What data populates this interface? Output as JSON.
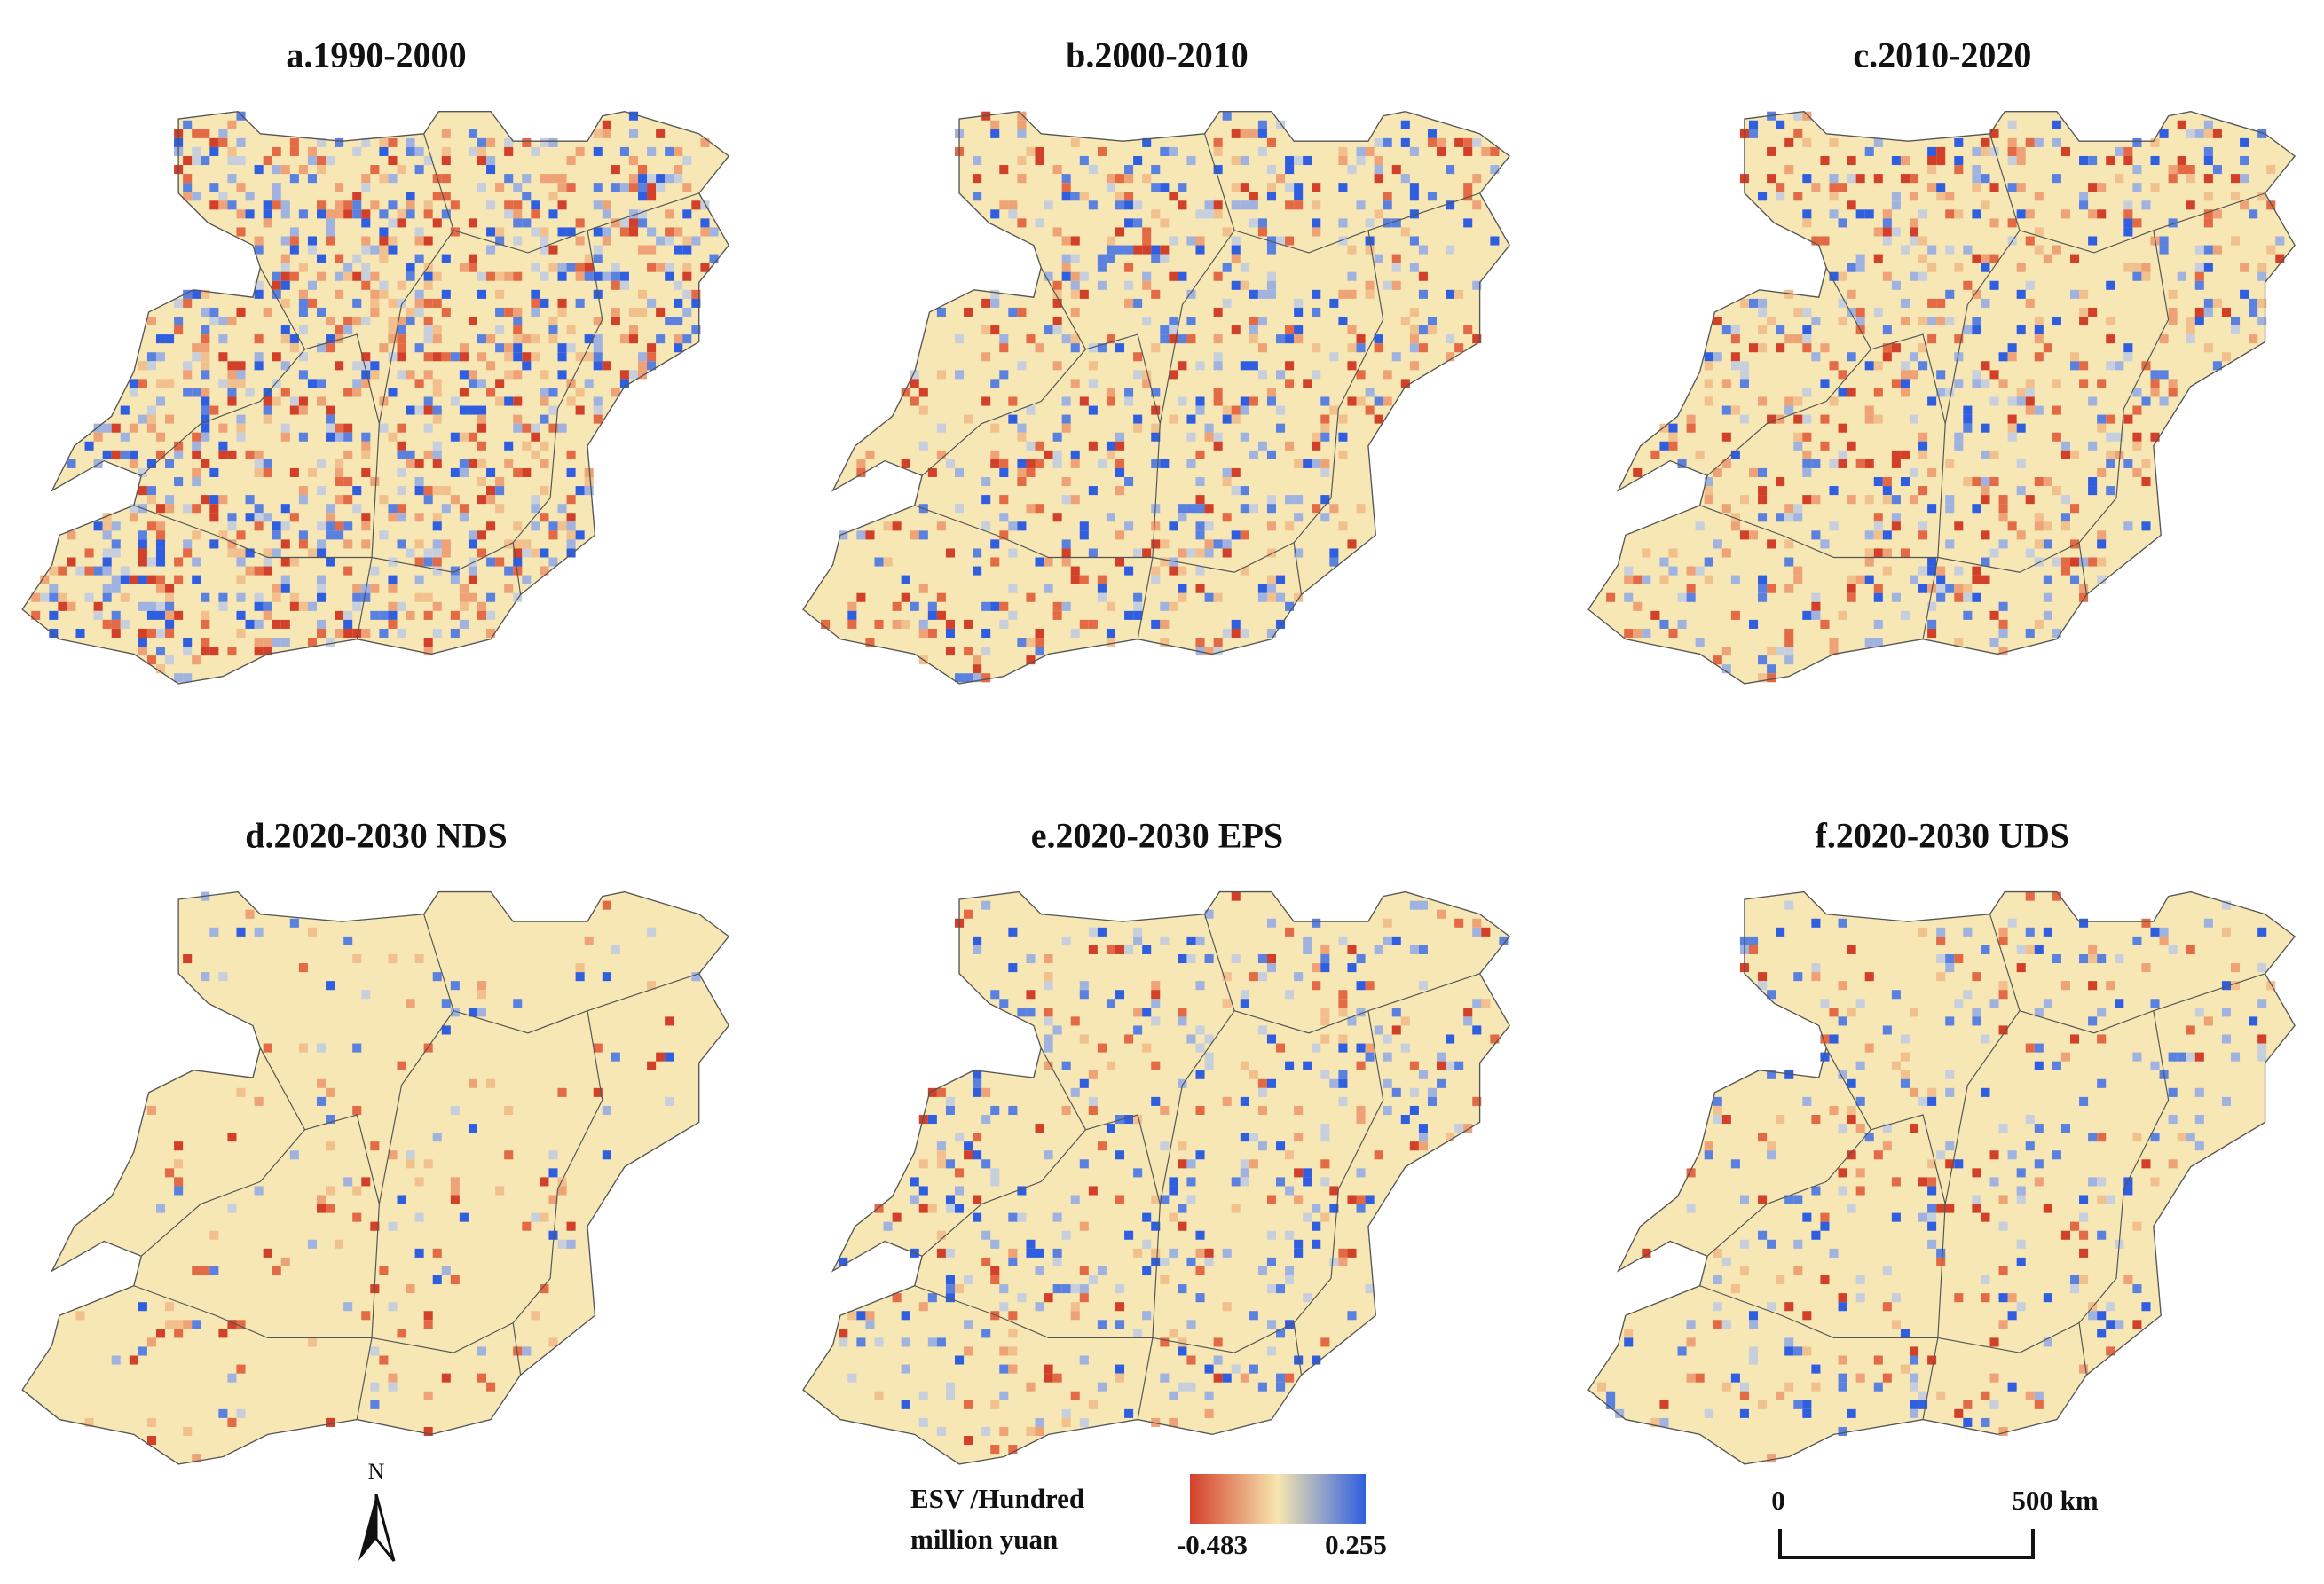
{
  "panels": [
    {
      "title": "a.1990-2000"
    },
    {
      "title": "b.2000-2010"
    },
    {
      "title": "c.2010-2020"
    },
    {
      "title": "d.2020-2030 NDS"
    },
    {
      "title": "e.2020-2030 EPS"
    },
    {
      "title": "f.2020-2030 UDS"
    }
  ],
  "legend": {
    "title_line1": "ESV /Hundred",
    "title_line2": "million yuan",
    "min": -0.483,
    "max": 0.255
  },
  "scale_bar": {
    "start": "0",
    "end": "500 km"
  },
  "north_arrow": "N"
}
